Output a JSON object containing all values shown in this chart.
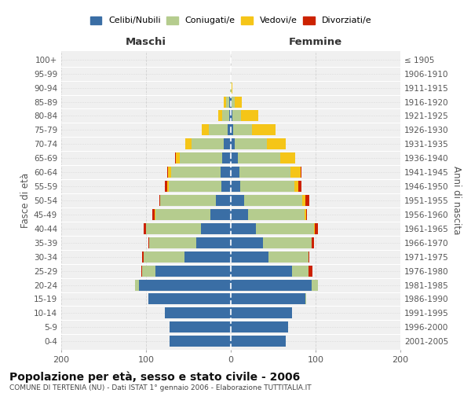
{
  "age_groups": [
    "0-4",
    "5-9",
    "10-14",
    "15-19",
    "20-24",
    "25-29",
    "30-34",
    "35-39",
    "40-44",
    "45-49",
    "50-54",
    "55-59",
    "60-64",
    "65-69",
    "70-74",
    "75-79",
    "80-84",
    "85-89",
    "90-94",
    "95-99",
    "100+"
  ],
  "birth_years": [
    "2001-2005",
    "1996-2000",
    "1991-1995",
    "1986-1990",
    "1981-1985",
    "1976-1980",
    "1971-1975",
    "1966-1970",
    "1961-1965",
    "1956-1960",
    "1951-1955",
    "1946-1950",
    "1941-1945",
    "1936-1940",
    "1931-1935",
    "1926-1930",
    "1921-1925",
    "1916-1920",
    "1911-1915",
    "1906-1910",
    "≤ 1905"
  ],
  "maschi": {
    "celibi": [
      72,
      72,
      78,
      97,
      108,
      89,
      55,
      41,
      35,
      24,
      18,
      11,
      12,
      10,
      8,
      4,
      2,
      2,
      0,
      0,
      0
    ],
    "coniugati": [
      0,
      0,
      0,
      0,
      5,
      16,
      48,
      55,
      65,
      65,
      65,
      62,
      58,
      50,
      38,
      22,
      8,
      4,
      1,
      0,
      0
    ],
    "vedovi": [
      0,
      0,
      0,
      0,
      0,
      0,
      0,
      0,
      0,
      1,
      0,
      2,
      4,
      5,
      8,
      8,
      5,
      2,
      0,
      0,
      0
    ],
    "divorziati": [
      0,
      0,
      0,
      0,
      0,
      1,
      2,
      1,
      3,
      3,
      1,
      3,
      1,
      1,
      0,
      0,
      0,
      0,
      0,
      0,
      0
    ]
  },
  "femmine": {
    "nubili": [
      65,
      68,
      72,
      88,
      95,
      72,
      44,
      38,
      30,
      20,
      16,
      11,
      10,
      8,
      5,
      3,
      2,
      1,
      0,
      0,
      0
    ],
    "coniugate": [
      0,
      0,
      0,
      1,
      8,
      20,
      48,
      57,
      68,
      67,
      68,
      64,
      60,
      50,
      38,
      22,
      10,
      4,
      1,
      0,
      0
    ],
    "vedove": [
      0,
      0,
      0,
      0,
      0,
      0,
      0,
      0,
      1,
      2,
      4,
      5,
      12,
      18,
      22,
      28,
      20,
      8,
      1,
      0,
      0
    ],
    "divorziate": [
      0,
      0,
      0,
      0,
      0,
      4,
      1,
      3,
      4,
      1,
      5,
      3,
      1,
      0,
      0,
      0,
      0,
      0,
      0,
      0,
      0
    ]
  },
  "colors": {
    "celibi": "#3A6EA5",
    "coniugati": "#B5CC8E",
    "vedovi": "#F5C518",
    "divorziati": "#CC2200"
  },
  "xlim": 200,
  "title": "Popolazione per età, sesso e stato civile - 2006",
  "subtitle": "COMUNE DI TERTENIA (NU) - Dati ISTAT 1° gennaio 2006 - Elaborazione TUTTITALIA.IT",
  "ylabel_left": "Fasce di età",
  "ylabel_right": "Anni di nascita",
  "xlabel_left": "Maschi",
  "xlabel_right": "Femmine",
  "background_color": "#ffffff",
  "plot_bg": "#f0f0f0",
  "grid_color": "#cccccc"
}
